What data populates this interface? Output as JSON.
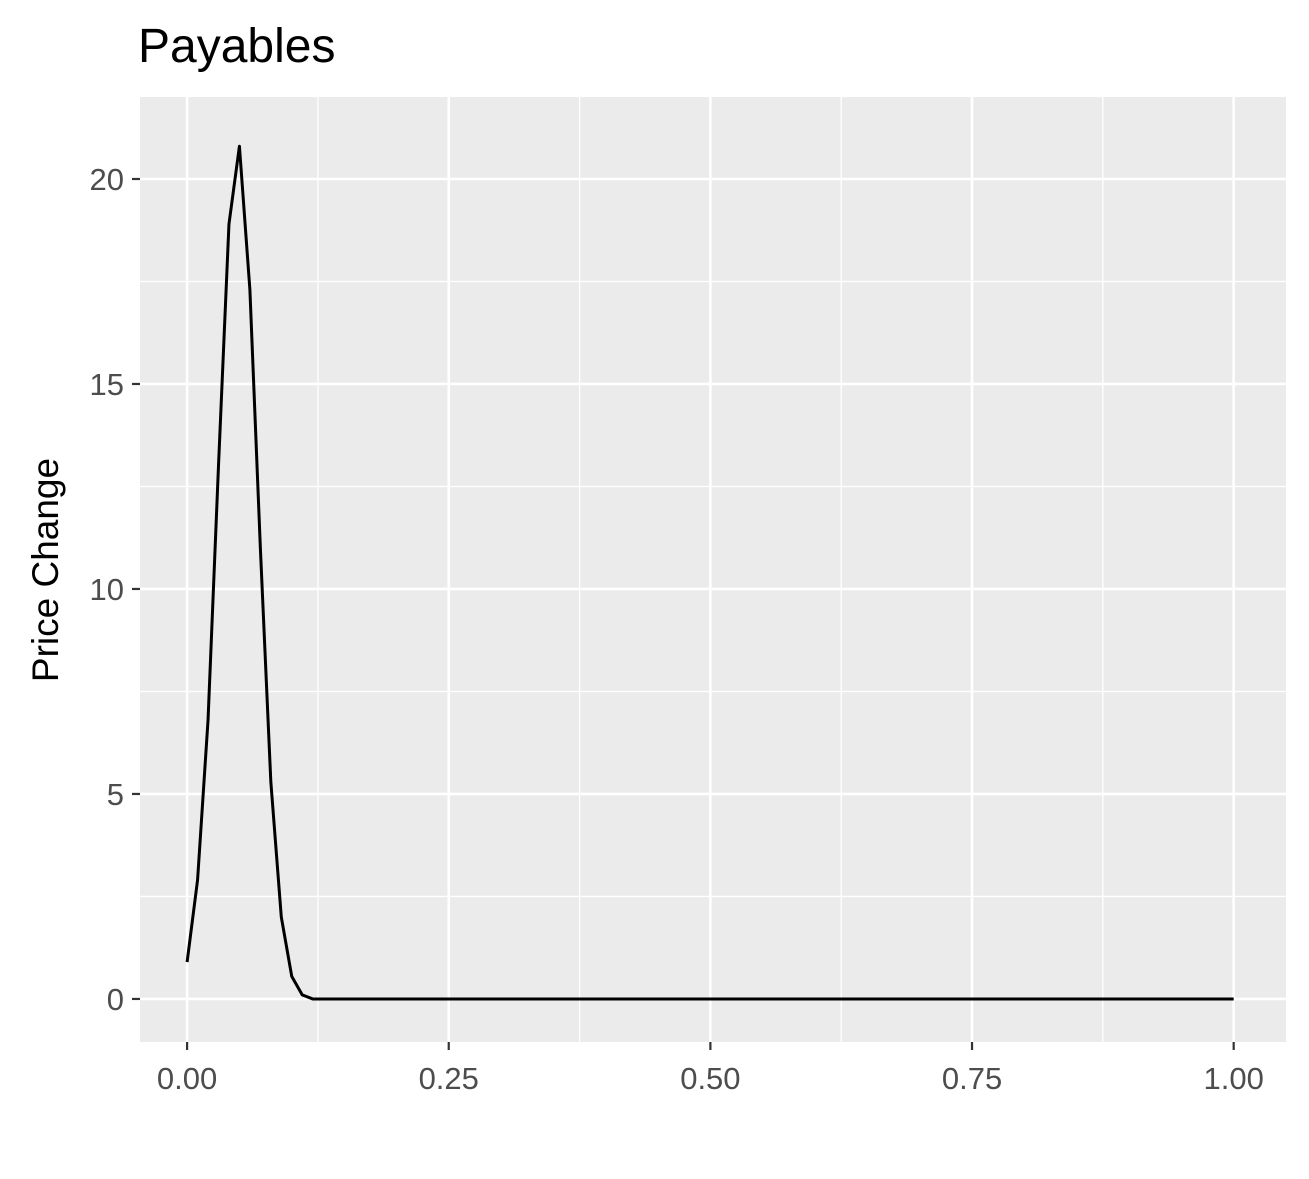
{
  "chart_data": {
    "type": "line",
    "title": "Payables",
    "xlabel": "",
    "ylabel": "Price Change",
    "xlim": [
      -0.045,
      1.05
    ],
    "ylim": [
      -1.05,
      22.0
    ],
    "x_ticks": [
      0.0,
      0.25,
      0.5,
      0.75,
      1.0
    ],
    "x_tick_labels": [
      "0.00",
      "0.25",
      "0.50",
      "0.75",
      "1.00"
    ],
    "y_ticks": [
      0,
      5,
      10,
      15,
      20
    ],
    "y_tick_labels": [
      "0",
      "5",
      "10",
      "15",
      "20"
    ],
    "x_minor_ticks": [
      0.125,
      0.375,
      0.625,
      0.875
    ],
    "y_minor_ticks": [
      2.5,
      7.5,
      12.5,
      17.5
    ],
    "grid": true,
    "panel_color": "#ebebeb",
    "line_color": "#000000",
    "series": [
      {
        "x": [
          0.0,
          0.01,
          0.02,
          0.03,
          0.04,
          0.05,
          0.06,
          0.07,
          0.08,
          0.09,
          0.1,
          0.11,
          0.12,
          0.13,
          0.2,
          0.3,
          0.4,
          0.5,
          0.6,
          0.7,
          0.8,
          0.9,
          1.0
        ],
        "y": [
          0.9,
          2.9,
          6.8,
          13.0,
          18.9,
          20.8,
          17.3,
          11.0,
          5.3,
          2.0,
          0.55,
          0.1,
          0.0,
          0.0,
          0.0,
          0.0,
          0.0,
          0.0,
          0.0,
          0.0,
          0.0,
          0.0,
          0.0
        ]
      }
    ]
  }
}
